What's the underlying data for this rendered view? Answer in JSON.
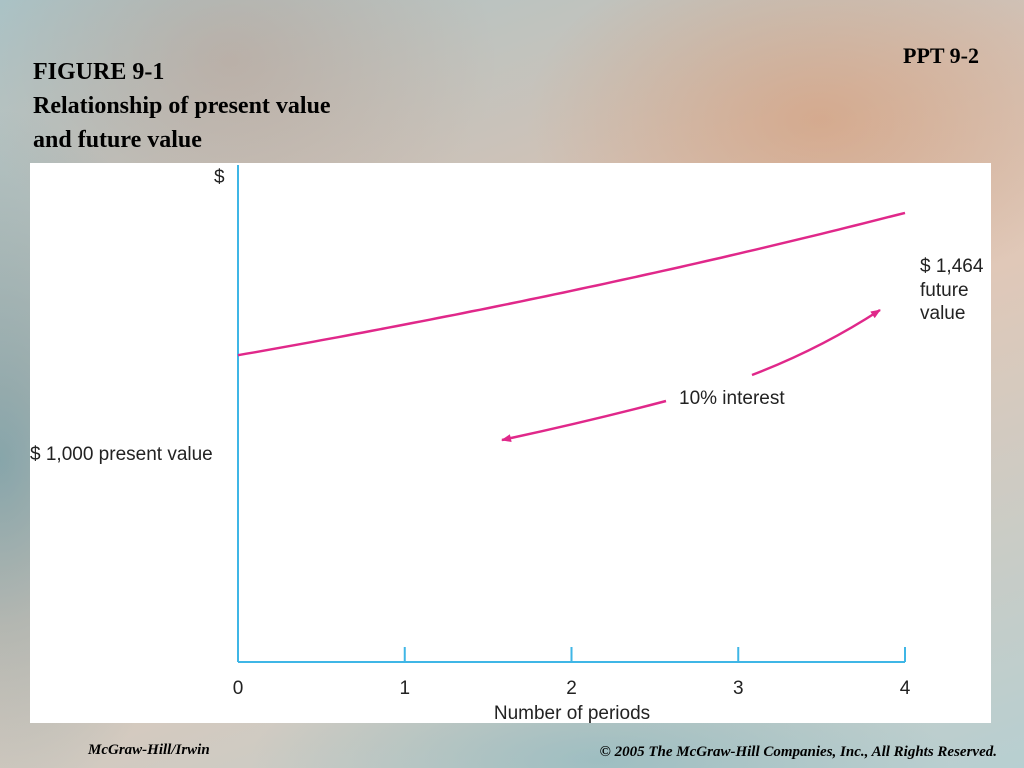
{
  "slide": {
    "label": "PPT 9-2",
    "figure_title_line1": "FIGURE 9-1",
    "figure_title_line2": "Relationship of present value",
    "figure_title_line3": "and future value"
  },
  "footer": {
    "publisher": "McGraw-Hill/Irwin",
    "copyright": "© 2005 The McGraw-Hill Companies, Inc., All Rights Reserved."
  },
  "colors": {
    "curve": "#e0288a",
    "axis": "#3fb6e6",
    "text": "#222222"
  },
  "chart_data": {
    "type": "line",
    "ylabel": "$",
    "xlabel": "Number of periods",
    "x_ticks": [
      "0",
      "1",
      "2",
      "3",
      "4"
    ],
    "xlim": [
      0,
      4
    ],
    "ylim": [
      0,
      1620
    ],
    "grid": false,
    "series": [
      {
        "x": [
          0,
          1,
          2,
          3,
          4
        ],
        "values": [
          1000,
          1100,
          1210,
          1331,
          1464
        ]
      }
    ],
    "annotations": {
      "present_value": "$ 1,000 present value",
      "future_value_amount": "$ 1,464",
      "future_value_line1": "future",
      "future_value_line2": "value",
      "interest": "10% interest"
    }
  }
}
